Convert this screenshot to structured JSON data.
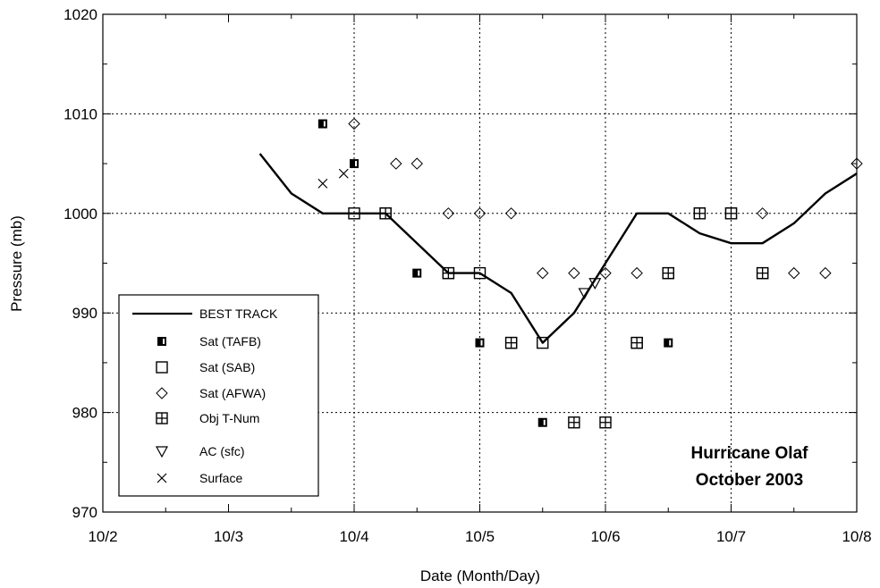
{
  "chart_data": {
    "type": "scatter",
    "title": "",
    "xlabel": "Date (Month/Day)",
    "ylabel": "Pressure (mb)",
    "x_unit": "days",
    "x_tick_labels": [
      "10/2",
      "10/3",
      "10/4",
      "10/5",
      "10/6",
      "10/7",
      "10/8"
    ],
    "xlim": [
      "10/2 00Z",
      "10/8 00Z"
    ],
    "ylim": [
      970,
      1020
    ],
    "y_ticks": [
      970,
      980,
      990,
      1000,
      1010,
      1020
    ],
    "grid": "dotted, major ticks",
    "legend_position": "bottom-left",
    "annotation": [
      "Hurricane Olaf",
      "October 2003"
    ],
    "series": [
      {
        "name": "BEST TRACK",
        "kind": "line",
        "points": [
          {
            "t": "10/3 06Z",
            "p": 1006
          },
          {
            "t": "10/3 12Z",
            "p": 1002
          },
          {
            "t": "10/3 18Z",
            "p": 1000
          },
          {
            "t": "10/4 00Z",
            "p": 1000
          },
          {
            "t": "10/4 06Z",
            "p": 1000
          },
          {
            "t": "10/4 12Z",
            "p": 997
          },
          {
            "t": "10/4 18Z",
            "p": 994
          },
          {
            "t": "10/5 00Z",
            "p": 994
          },
          {
            "t": "10/5 06Z",
            "p": 992
          },
          {
            "t": "10/5 12Z",
            "p": 987
          },
          {
            "t": "10/5 18Z",
            "p": 990
          },
          {
            "t": "10/6 00Z",
            "p": 995
          },
          {
            "t": "10/6 06Z",
            "p": 1000
          },
          {
            "t": "10/6 12Z",
            "p": 1000
          },
          {
            "t": "10/6 18Z",
            "p": 998
          },
          {
            "t": "10/7 00Z",
            "p": 997
          },
          {
            "t": "10/7 06Z",
            "p": 997
          },
          {
            "t": "10/7 12Z",
            "p": 999
          },
          {
            "t": "10/7 18Z",
            "p": 1002
          },
          {
            "t": "10/8 00Z",
            "p": 1004
          }
        ]
      },
      {
        "name": "Sat (TAFB)",
        "kind": "tafb",
        "points": [
          {
            "t": "10/3 18Z",
            "p": 1009
          },
          {
            "t": "10/4 00Z",
            "p": 1005
          },
          {
            "t": "10/4 06Z",
            "p": 1000
          },
          {
            "t": "10/4 12Z",
            "p": 994
          },
          {
            "t": "10/4 18Z",
            "p": 994
          },
          {
            "t": "10/5 00Z",
            "p": 987
          },
          {
            "t": "10/5 06Z",
            "p": 987
          },
          {
            "t": "10/5 12Z",
            "p": 979
          },
          {
            "t": "10/5 18Z",
            "p": 979
          },
          {
            "t": "10/6 00Z",
            "p": 979
          },
          {
            "t": "10/6 06Z",
            "p": 987
          },
          {
            "t": "10/6 12Z",
            "p": 987
          },
          {
            "t": "10/6 18Z",
            "p": 1000
          },
          {
            "t": "10/7 00Z",
            "p": 1000
          },
          {
            "t": "10/7 06Z",
            "p": 994
          }
        ]
      },
      {
        "name": "Sat (SAB)",
        "kind": "sab",
        "points": [
          {
            "t": "10/4 00Z",
            "p": 1000
          },
          {
            "t": "10/4 06Z",
            "p": 1000
          },
          {
            "t": "10/4 18Z",
            "p": 994
          },
          {
            "t": "10/5 00Z",
            "p": 994
          },
          {
            "t": "10/5 06Z",
            "p": 987
          },
          {
            "t": "10/5 12Z",
            "p": 987
          },
          {
            "t": "10/6 06Z",
            "p": 987
          },
          {
            "t": "10/6 12Z",
            "p": 994
          },
          {
            "t": "10/6 18Z",
            "p": 1000
          },
          {
            "t": "10/7 00Z",
            "p": 1000
          },
          {
            "t": "10/7 06Z",
            "p": 994
          }
        ]
      },
      {
        "name": "Sat (AFWA)",
        "kind": "afwa",
        "points": [
          {
            "t": "10/4 00Z",
            "p": 1009
          },
          {
            "t": "10/4 08Z",
            "p": 1005
          },
          {
            "t": "10/4 12Z",
            "p": 1005
          },
          {
            "t": "10/4 18Z",
            "p": 1000
          },
          {
            "t": "10/5 00Z",
            "p": 1000
          },
          {
            "t": "10/5 06Z",
            "p": 1000
          },
          {
            "t": "10/5 12Z",
            "p": 994
          },
          {
            "t": "10/5 18Z",
            "p": 994
          },
          {
            "t": "10/6 00Z",
            "p": 994
          },
          {
            "t": "10/6 06Z",
            "p": 994
          },
          {
            "t": "10/6 12Z",
            "p": 994
          },
          {
            "t": "10/7 06Z",
            "p": 1000
          },
          {
            "t": "10/7 12Z",
            "p": 994
          },
          {
            "t": "10/7 18Z",
            "p": 994
          },
          {
            "t": "10/8 00Z",
            "p": 1005
          }
        ]
      },
      {
        "name": "Obj T-Num",
        "kind": "objt",
        "points": [
          {
            "t": "10/4 06Z",
            "p": 1000
          },
          {
            "t": "10/4 18Z",
            "p": 994
          },
          {
            "t": "10/5 06Z",
            "p": 987
          },
          {
            "t": "10/5 18Z",
            "p": 979
          },
          {
            "t": "10/6 00Z",
            "p": 979
          },
          {
            "t": "10/6 06Z",
            "p": 987
          },
          {
            "t": "10/6 12Z",
            "p": 994
          },
          {
            "t": "10/6 18Z",
            "p": 1000
          },
          {
            "t": "10/7 00Z",
            "p": 1000
          },
          {
            "t": "10/7 06Z",
            "p": 994
          }
        ]
      },
      {
        "name": "AC (sfc)",
        "kind": "ac",
        "points": [
          {
            "t": "10/5 20Z",
            "p": 992
          },
          {
            "t": "10/5 22Z",
            "p": 993
          }
        ]
      },
      {
        "name": "Surface",
        "kind": "surface",
        "points": [
          {
            "t": "10/3 18Z",
            "p": 1003
          },
          {
            "t": "10/3 22Z",
            "p": 1004
          }
        ]
      }
    ]
  }
}
